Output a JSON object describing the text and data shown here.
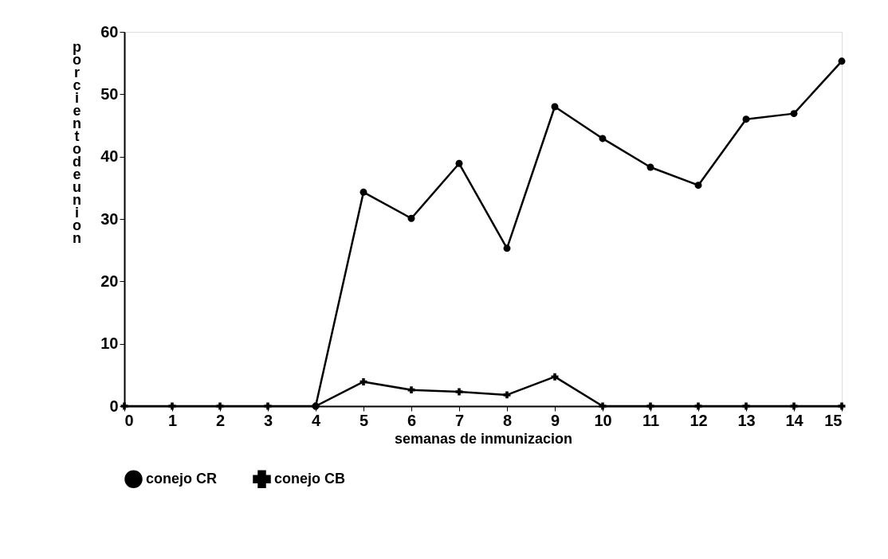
{
  "chart_data": {
    "type": "line",
    "xlabel": "semanas de inmunizacion",
    "ylabel": "porciento de union",
    "x": [
      0,
      1,
      2,
      3,
      4,
      5,
      6,
      7,
      8,
      9,
      10,
      11,
      12,
      13,
      14,
      15
    ],
    "series": [
      {
        "name": "conejo CR",
        "color": "#000000",
        "marker": "circle",
        "values": [
          null,
          null,
          null,
          null,
          0,
          34.3,
          30.1,
          38.9,
          25.3,
          48,
          42.9,
          38.3,
          35.4,
          46,
          46.9,
          55.3
        ]
      },
      {
        "name": "conejo CB",
        "color": "#000000",
        "marker": "cross",
        "values": [
          0,
          0,
          0,
          0,
          0,
          3.9,
          2.6,
          2.3,
          1.8,
          4.7,
          0,
          0,
          0,
          0,
          0,
          0
        ]
      }
    ],
    "xlim": [
      0,
      15
    ],
    "xticks": [
      0,
      1,
      2,
      3,
      4,
      5,
      6,
      7,
      8,
      9,
      10,
      11,
      12,
      13,
      14,
      15
    ],
    "ylim": [
      0,
      60
    ],
    "yticks": [
      0,
      10,
      20,
      30,
      40,
      50,
      60
    ],
    "grid": false,
    "legend": "bottom",
    "line_style": "solid"
  }
}
